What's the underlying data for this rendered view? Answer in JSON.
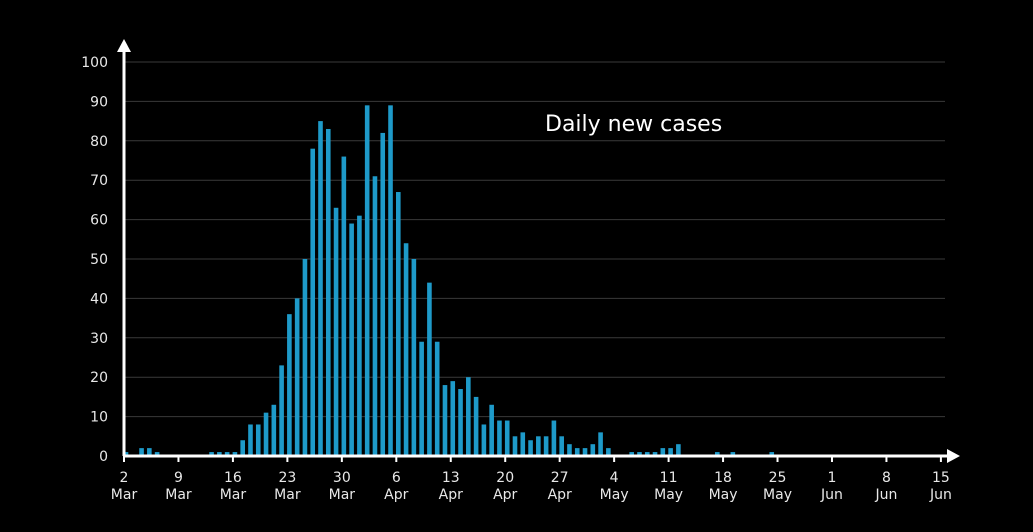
{
  "chart_data": {
    "type": "bar",
    "title": "Daily new cases",
    "xlabel": "",
    "ylabel": "",
    "ylim": [
      0,
      100
    ],
    "yticks": [
      0,
      10,
      20,
      30,
      40,
      50,
      60,
      70,
      80,
      90,
      100
    ],
    "grid": true,
    "bar_color": "#1e9ac9",
    "x_ticks": [
      {
        "day": "2",
        "month": "Mar"
      },
      {
        "day": "9",
        "month": "Mar"
      },
      {
        "day": "16",
        "month": "Mar"
      },
      {
        "day": "23",
        "month": "Mar"
      },
      {
        "day": "30",
        "month": "Mar"
      },
      {
        "day": "6",
        "month": "Apr"
      },
      {
        "day": "13",
        "month": "Apr"
      },
      {
        "day": "20",
        "month": "Apr"
      },
      {
        "day": "27",
        "month": "Apr"
      },
      {
        "day": "4",
        "month": "May"
      },
      {
        "day": "11",
        "month": "May"
      },
      {
        "day": "18",
        "month": "May"
      },
      {
        "day": "25",
        "month": "May"
      },
      {
        "day": "1",
        "month": "Jun"
      },
      {
        "day": "8",
        "month": "Jun"
      },
      {
        "day": "15",
        "month": "Jun"
      }
    ],
    "dates": [
      "2 Mar",
      "3 Mar",
      "4 Mar",
      "5 Mar",
      "6 Mar",
      "7 Mar",
      "8 Mar",
      "9 Mar",
      "10 Mar",
      "11 Mar",
      "12 Mar",
      "13 Mar",
      "14 Mar",
      "15 Mar",
      "16 Mar",
      "17 Mar",
      "18 Mar",
      "19 Mar",
      "20 Mar",
      "21 Mar",
      "22 Mar",
      "23 Mar",
      "24 Mar",
      "25 Mar",
      "26 Mar",
      "27 Mar",
      "28 Mar",
      "29 Mar",
      "30 Mar",
      "31 Mar",
      "1 Apr",
      "2 Apr",
      "3 Apr",
      "4 Apr",
      "5 Apr",
      "6 Apr",
      "7 Apr",
      "8 Apr",
      "9 Apr",
      "10 Apr",
      "11 Apr",
      "12 Apr",
      "13 Apr",
      "14 Apr",
      "15 Apr",
      "16 Apr",
      "17 Apr",
      "18 Apr",
      "19 Apr",
      "20 Apr",
      "21 Apr",
      "22 Apr",
      "23 Apr",
      "24 Apr",
      "25 Apr",
      "26 Apr",
      "27 Apr",
      "28 Apr",
      "29 Apr",
      "30 Apr",
      "1 May",
      "2 May",
      "3 May",
      "4 May",
      "5 May",
      "6 May",
      "7 May",
      "8 May",
      "9 May",
      "10 May",
      "11 May",
      "12 May",
      "13 May",
      "14 May",
      "15 May",
      "16 May",
      "17 May",
      "18 May",
      "19 May",
      "20 May",
      "21 May",
      "22 May",
      "23 May",
      "24 May",
      "25 May",
      "26 May",
      "27 May",
      "28 May",
      "29 May",
      "30 May",
      "31 May",
      "1 Jun",
      "2 Jun",
      "3 Jun",
      "4 Jun",
      "5 Jun",
      "6 Jun",
      "7 Jun",
      "8 Jun",
      "9 Jun",
      "10 Jun",
      "11 Jun",
      "12 Jun",
      "13 Jun",
      "14 Jun",
      "15 Jun"
    ],
    "values": [
      1,
      0,
      2,
      2,
      1,
      0,
      0,
      0,
      0,
      0,
      0,
      1,
      1,
      1,
      1,
      4,
      8,
      8,
      11,
      13,
      23,
      36,
      40,
      50,
      78,
      85,
      83,
      63,
      76,
      59,
      61,
      89,
      71,
      82,
      89,
      67,
      54,
      50,
      29,
      44,
      29,
      18,
      19,
      17,
      20,
      15,
      8,
      13,
      9,
      9,
      5,
      6,
      4,
      5,
      5,
      9,
      5,
      3,
      2,
      2,
      3,
      6,
      2,
      0,
      0,
      1,
      1,
      1,
      1,
      2,
      2,
      3,
      0,
      0,
      0,
      0,
      1,
      0,
      1,
      0,
      0,
      0,
      0,
      1,
      0,
      0,
      0,
      0,
      0,
      0,
      0,
      0,
      0,
      0,
      0,
      0,
      0,
      0,
      0,
      0,
      0,
      0,
      0,
      0,
      0,
      0
    ]
  }
}
